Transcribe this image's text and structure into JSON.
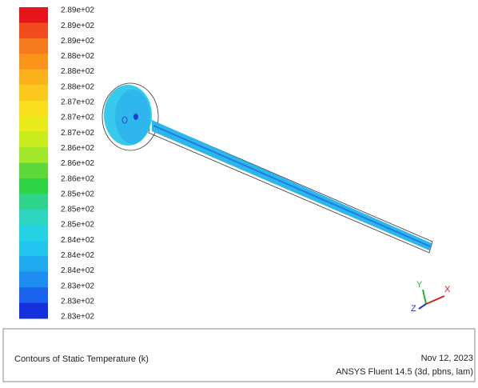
{
  "legend": {
    "labels": [
      "2.89e+02",
      "2.89e+02",
      "2.89e+02",
      "2.88e+02",
      "2.88e+02",
      "2.88e+02",
      "2.87e+02",
      "2.87e+02",
      "2.87e+02",
      "2.86e+02",
      "2.86e+02",
      "2.86e+02",
      "2.85e+02",
      "2.85e+02",
      "2.85e+02",
      "2.84e+02",
      "2.84e+02",
      "2.84e+02",
      "2.83e+02",
      "2.83e+02",
      "2.83e+02"
    ]
  },
  "triad": {
    "y": "Y",
    "x": "X",
    "z": "Z"
  },
  "footer": {
    "title": "Contours of Static Temperature (k)",
    "date": "Nov 12, 2023",
    "version": "ANSYS Fluent 14.5 (3d, pbns, lam)"
  }
}
